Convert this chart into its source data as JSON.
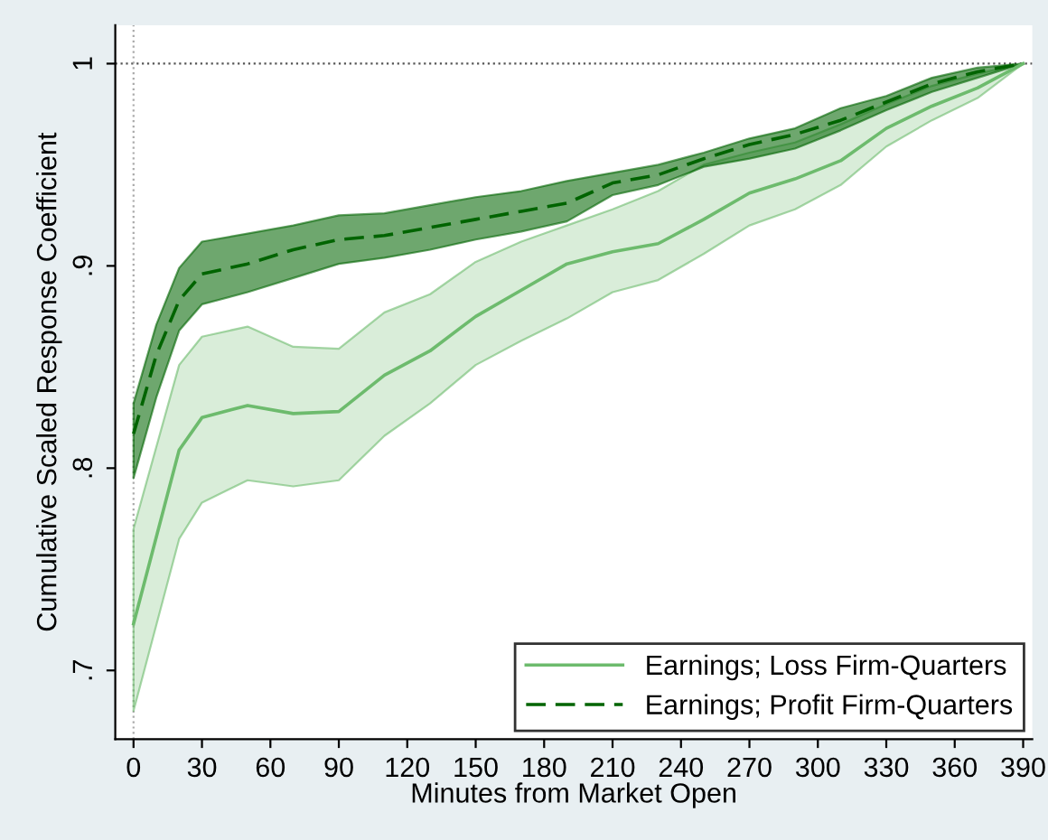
{
  "chart_data": {
    "type": "line",
    "xlabel": "Minutes from Market Open",
    "ylabel": "Cumulative Scaled Response Coefficient",
    "xlim": [
      -8,
      394
    ],
    "ylim": [
      0.666,
      1.019
    ],
    "xticks": [
      0,
      30,
      60,
      90,
      120,
      150,
      180,
      210,
      240,
      270,
      300,
      330,
      360,
      390
    ],
    "yticks": [
      {
        "value": 0.7,
        "label": ".7"
      },
      {
        "value": 0.8,
        "label": ".8"
      },
      {
        "value": 0.9,
        "label": ".9"
      },
      1
    ],
    "grid": false,
    "legend": "bottom right",
    "marker": "none",
    "ref_lines": [
      {
        "axis": "y",
        "value": 1,
        "line_style": "dotted",
        "color": "#555555"
      },
      {
        "axis": "x",
        "value": 0,
        "line_style": "dotted",
        "color": "#aaaaaa"
      }
    ],
    "series": [
      {
        "name": "Earnings; Loss Firm-Quarters",
        "color": "#6dbb6d",
        "line_style": "solid",
        "x": [
          0,
          20,
          30,
          50,
          70,
          90,
          110,
          130,
          150,
          170,
          190,
          210,
          230,
          250,
          270,
          290,
          310,
          330,
          350,
          370,
          390
        ],
        "values": [
          0.723,
          0.809,
          0.825,
          0.831,
          0.827,
          0.828,
          0.846,
          0.858,
          0.875,
          0.888,
          0.901,
          0.907,
          0.911,
          0.923,
          0.936,
          0.943,
          0.952,
          0.968,
          0.979,
          0.988,
          1.0
        ],
        "lower": [
          0.68,
          0.765,
          0.783,
          0.794,
          0.791,
          0.794,
          0.816,
          0.832,
          0.851,
          0.863,
          0.874,
          0.887,
          0.893,
          0.906,
          0.92,
          0.928,
          0.94,
          0.959,
          0.972,
          0.983,
          1.0
        ],
        "upper": [
          0.77,
          0.851,
          0.865,
          0.87,
          0.86,
          0.859,
          0.877,
          0.886,
          0.902,
          0.912,
          0.92,
          0.928,
          0.937,
          0.95,
          0.956,
          0.961,
          0.97,
          0.98,
          0.989,
          0.995,
          1.0
        ]
      },
      {
        "name": "Earnings; Profit Firm-Quarters",
        "color": "#006400",
        "line_style": "dashed",
        "x": [
          0,
          10,
          20,
          30,
          50,
          70,
          90,
          110,
          130,
          150,
          170,
          190,
          210,
          230,
          250,
          270,
          290,
          310,
          330,
          350,
          370,
          390
        ],
        "values": [
          0.817,
          0.856,
          0.883,
          0.896,
          0.901,
          0.908,
          0.913,
          0.915,
          0.919,
          0.923,
          0.927,
          0.931,
          0.941,
          0.945,
          0.953,
          0.96,
          0.965,
          0.972,
          0.981,
          0.99,
          0.996,
          1.0
        ],
        "lower": [
          0.795,
          0.835,
          0.868,
          0.881,
          0.887,
          0.894,
          0.901,
          0.904,
          0.908,
          0.913,
          0.917,
          0.922,
          0.935,
          0.94,
          0.949,
          0.953,
          0.958,
          0.967,
          0.977,
          0.986,
          0.993,
          1.0
        ],
        "upper": [
          0.832,
          0.871,
          0.899,
          0.912,
          0.916,
          0.92,
          0.925,
          0.926,
          0.93,
          0.934,
          0.937,
          0.942,
          0.946,
          0.95,
          0.956,
          0.963,
          0.968,
          0.978,
          0.984,
          0.993,
          0.998,
          1.0
        ]
      }
    ]
  }
}
